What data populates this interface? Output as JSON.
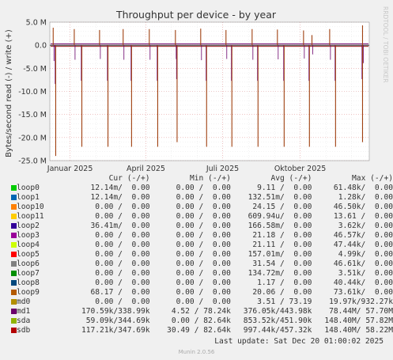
{
  "chart_data": {
    "type": "line",
    "title": "Throughput per device - by year",
    "ylabel": "Bytes/second read (-) / write (+)",
    "ylim": [
      -25000000,
      5000000
    ],
    "yticks": [
      {
        "value": 5000000,
        "label": "5.0 M"
      },
      {
        "value": 0,
        "label": "0.0"
      },
      {
        "value": -5000000,
        "label": "-5.0 M"
      },
      {
        "value": -10000000,
        "label": "-10.0 M"
      },
      {
        "value": -15000000,
        "label": "-15.0 M"
      },
      {
        "value": -20000000,
        "label": "-20.0 M"
      },
      {
        "value": -25000000,
        "label": "-25.0 M"
      }
    ],
    "xlim": [
      "2024-12-08",
      "2025-12-22"
    ],
    "xticks": [
      {
        "date": "2025-01-01",
        "label": "Januar 2025"
      },
      {
        "date": "2025-04-01",
        "label": "April 2025"
      },
      {
        "date": "2025-07-01",
        "label": "Juli 2025"
      },
      {
        "date": "2025-10-01",
        "label": "Oktober 2025"
      }
    ],
    "grid": true,
    "spikes_read": [
      {
        "date": "2024-12-15",
        "value": -24000000
      },
      {
        "date": "2025-01-15",
        "value": -22000000
      },
      {
        "date": "2025-02-15",
        "value": -22000000
      },
      {
        "date": "2025-03-15",
        "value": -22000000
      },
      {
        "date": "2025-04-15",
        "value": -22000000
      },
      {
        "date": "2025-05-08",
        "value": -21000000
      },
      {
        "date": "2025-06-12",
        "value": -22000000
      },
      {
        "date": "2025-07-12",
        "value": -22000000
      },
      {
        "date": "2025-08-12",
        "value": -22000000
      },
      {
        "date": "2025-09-12",
        "value": -22000000
      },
      {
        "date": "2025-10-12",
        "value": -22000000
      },
      {
        "date": "2025-11-12",
        "value": -22000000
      },
      {
        "date": "2025-12-14",
        "value": -21000000
      }
    ],
    "spikes_write": [
      {
        "date": "2024-12-12",
        "value": 3800000
      },
      {
        "date": "2025-01-06",
        "value": 3500000
      },
      {
        "date": "2025-02-05",
        "value": 3300000
      },
      {
        "date": "2025-03-05",
        "value": 3500000
      },
      {
        "date": "2025-04-05",
        "value": 3500000
      },
      {
        "date": "2025-05-06",
        "value": 3300000
      },
      {
        "date": "2025-06-05",
        "value": 3600000
      },
      {
        "date": "2025-07-05",
        "value": 3300000
      },
      {
        "date": "2025-08-05",
        "value": 3500000
      },
      {
        "date": "2025-09-04",
        "value": 3400000
      },
      {
        "date": "2025-10-05",
        "value": 3200000
      },
      {
        "date": "2025-10-15",
        "value": 2200000
      },
      {
        "date": "2025-11-05",
        "value": 3500000
      },
      {
        "date": "2025-12-14",
        "value": 4300000
      }
    ],
    "series": [
      {
        "name": "loop0",
        "color": "#00cc00",
        "cur": "12.14m/  0.00",
        "min": "0.00 /  0.00",
        "avg": "9.11 /  0.00",
        "max": "61.48k/  0.00"
      },
      {
        "name": "loop1",
        "color": "#0066b3",
        "cur": "12.14m/  0.00",
        "min": "0.00 /  0.00",
        "avg": "132.51m/  0.00",
        "max": "1.28k/  0.00"
      },
      {
        "name": "loop10",
        "color": "#ff8000",
        "cur": "0.00 /  0.00",
        "min": "0.00 /  0.00",
        "avg": "24.15 /  0.00",
        "max": "46.50k/  0.00"
      },
      {
        "name": "loop11",
        "color": "#ffcc00",
        "cur": "0.00 /  0.00",
        "min": "0.00 /  0.00",
        "avg": "609.94u/  0.00",
        "max": "13.61 /  0.00"
      },
      {
        "name": "loop2",
        "color": "#330099",
        "cur": "36.41m/  0.00",
        "min": "0.00 /  0.00",
        "avg": "166.58m/  0.00",
        "max": "3.62k/  0.00"
      },
      {
        "name": "loop3",
        "color": "#990099",
        "cur": "0.00 /  0.00",
        "min": "0.00 /  0.00",
        "avg": "21.18 /  0.00",
        "max": "46.57k/  0.00"
      },
      {
        "name": "loop4",
        "color": "#ccff00",
        "cur": "0.00 /  0.00",
        "min": "0.00 /  0.00",
        "avg": "21.11 /  0.00",
        "max": "47.44k/  0.00"
      },
      {
        "name": "loop5",
        "color": "#ff0000",
        "cur": "0.00 /  0.00",
        "min": "0.00 /  0.00",
        "avg": "157.01m/  0.00",
        "max": "4.99k/  0.00"
      },
      {
        "name": "loop6",
        "color": "#808080",
        "cur": "0.00 /  0.00",
        "min": "0.00 /  0.00",
        "avg": "31.54 /  0.00",
        "max": "46.61k/  0.00"
      },
      {
        "name": "loop7",
        "color": "#008f00",
        "cur": "0.00 /  0.00",
        "min": "0.00 /  0.00",
        "avg": "134.72m/  0.00",
        "max": "3.51k/  0.00"
      },
      {
        "name": "loop8",
        "color": "#00487d",
        "cur": "0.00 /  0.00",
        "min": "0.00 /  0.00",
        "avg": "1.17 /  0.00",
        "max": "40.44k/  0.00"
      },
      {
        "name": "loop9",
        "color": "#b35a00",
        "cur": "68.17 /  0.00",
        "min": "0.00 /  0.00",
        "avg": "20.06 /  0.00",
        "max": "73.61k/  0.00"
      },
      {
        "name": "md0",
        "color": "#b38f00",
        "cur": "0.00 /  0.00",
        "min": "0.00 /  0.00",
        "avg": "3.51 / 73.19",
        "max": "19.97k/932.27k"
      },
      {
        "name": "md1",
        "color": "#6b006b",
        "cur": "170.59k/338.99k",
        "min": "4.52 / 78.24k",
        "avg": "376.05k/443.98k",
        "max": "78.44M/ 57.70M"
      },
      {
        "name": "sda",
        "color": "#8fb300",
        "cur": "59.09k/344.69k",
        "min": "0.00 / 82.64k",
        "avg": "853.52k/451.90k",
        "max": "148.40M/ 57.82M"
      },
      {
        "name": "sdb",
        "color": "#b30000",
        "cur": "117.21k/347.69k",
        "min": "30.49 / 82.64k",
        "avg": "997.44k/457.32k",
        "max": "148.40M/ 58.22M"
      }
    ]
  },
  "legend": {
    "headers": {
      "cur": "Cur (-/+)",
      "min": "Min (-/+)",
      "avg": "Avg (-/+)",
      "max": "Max (-/+)"
    }
  },
  "watermark": "RRDTOOL / TOBI OETIKER",
  "last_update": "Last update: Sat Dec 20 01:00:02 2025",
  "footer": "Munin 2.0.56"
}
